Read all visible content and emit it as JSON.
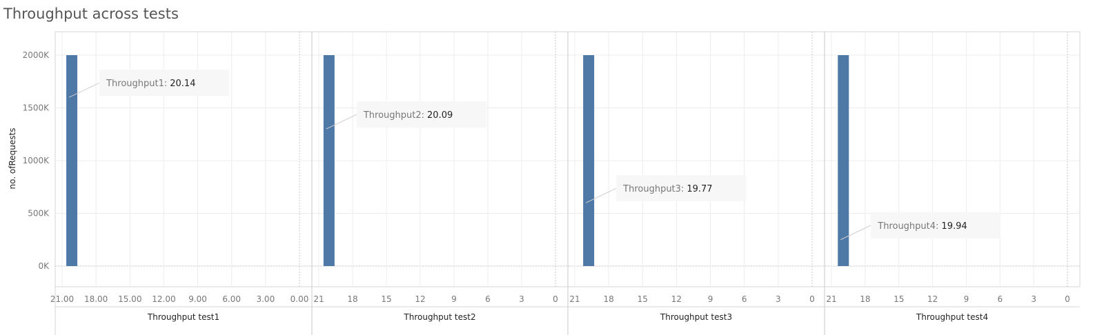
{
  "chart_data": {
    "type": "bar",
    "title": "Throughput across tests",
    "ylabel": "no. ofRequests",
    "ylim": [
      0,
      2200000
    ],
    "y_ticks": [
      0,
      500000,
      1000000,
      1500000,
      2000000
    ],
    "y_tick_labels": [
      "0K",
      "500K",
      "1000K",
      "1500K",
      "2000K"
    ],
    "grid": true,
    "panels": [
      {
        "title": "Throughput test1",
        "x_ticks": [
          21,
          18,
          15,
          12,
          9,
          6,
          3,
          0
        ],
        "x_tick_labels": [
          "21.00",
          "18.00",
          "15.00",
          "12.00",
          "9.00",
          "6.00",
          "3.00",
          "0.00"
        ],
        "xlim": [
          22,
          -0.5
        ],
        "bars": [
          {
            "x": 20.14,
            "y": 2000000
          }
        ],
        "annotation": {
          "label": "Throughput1:",
          "value": "20.14",
          "y": 1600000
        }
      },
      {
        "title": "Throughput test2",
        "x_ticks": [
          21,
          18,
          15,
          12,
          9,
          6,
          3,
          0
        ],
        "x_tick_labels": [
          "21",
          "18",
          "15",
          "12",
          "9",
          "6",
          "3",
          "0"
        ],
        "xlim": [
          22,
          -0.5
        ],
        "bars": [
          {
            "x": 20.09,
            "y": 2000000
          }
        ],
        "annotation": {
          "label": "Throughput2:",
          "value": "20.09",
          "y": 1300000
        }
      },
      {
        "title": "Throughput test3",
        "x_ticks": [
          21,
          18,
          15,
          12,
          9,
          6,
          3,
          0
        ],
        "x_tick_labels": [
          "21",
          "18",
          "15",
          "12",
          "9",
          "6",
          "3",
          "0"
        ],
        "xlim": [
          22,
          -0.5
        ],
        "bars": [
          {
            "x": 19.77,
            "y": 2000000
          }
        ],
        "annotation": {
          "label": "Throughput3:",
          "value": "19.77",
          "y": 600000
        }
      },
      {
        "title": "Throughput test4",
        "x_ticks": [
          21,
          18,
          15,
          12,
          9,
          6,
          3,
          0
        ],
        "x_tick_labels": [
          "21",
          "18",
          "15",
          "12",
          "9",
          "6",
          "3",
          "0"
        ],
        "xlim": [
          22,
          -0.5
        ],
        "bars": [
          {
            "x": 19.94,
            "y": 2000000
          }
        ],
        "annotation": {
          "label": "Throughput4:",
          "value": "19.94",
          "y": 250000
        }
      }
    ],
    "colors": {
      "bar": "#4e79a7"
    }
  }
}
